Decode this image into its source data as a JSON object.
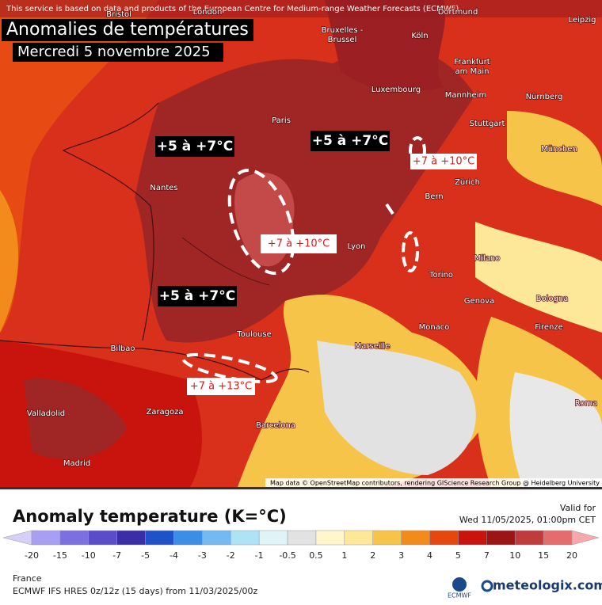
{
  "notice": "This service is based on data and products of the European Centre for Medium-range Weather Forecasts (ECMWF)",
  "title": "Anomalies de températures",
  "subtitle": "Mercredi 5 novembre 2025",
  "annotations": [
    "+5 à +7°C",
    "+5 à +7°C",
    "+5 à +7°C",
    "+7 à +10°C",
    "+7 à +10°C",
    "+7 à +13°C"
  ],
  "cities": [
    "Bristol",
    "London",
    "Dortmund",
    "Leipzig",
    "Bruxelles -",
    "Brussel",
    "Köln",
    "Frankfurt",
    "am Main",
    "Luxembourg",
    "Mannheim",
    "Nürnberg",
    "Paris",
    "Stuttgart",
    "München",
    "Nantes",
    "Zürich",
    "Bern",
    "Lyon",
    "Milano",
    "Torino",
    "Genova",
    "Bologna",
    "Monaco",
    "Firenze",
    "Toulouse",
    "Marseille",
    "Bilbao",
    "Roma",
    "Valladolid",
    "Zaragoza",
    "Barcelona",
    "Madrid"
  ],
  "attribution": "Map data © OpenStreetMap contributors, rendering GIScience Research Group @ Heidelberg University",
  "legend": {
    "title": "Anomaly temperature (K=°C)",
    "ticks": [
      -20,
      -15,
      -10,
      -7,
      -5,
      -4,
      -3,
      -2,
      -1,
      -0.5,
      0.5,
      1,
      2,
      3,
      4,
      5,
      7,
      10,
      15,
      20
    ],
    "colors": [
      "#d6d0f8",
      "#a99ff0",
      "#7c70e0",
      "#5b4dca",
      "#3a2ea6",
      "#1f52c8",
      "#3b8de6",
      "#74b9f0",
      "#aee2f5",
      "#e0f4f8",
      "#e2e2e2",
      "#fff6cc",
      "#fde89a",
      "#f6c448",
      "#f28b1c",
      "#e6470f",
      "#c8140c",
      "#9c1414",
      "#c03c3c",
      "#e46c6c",
      "#f6a8aa",
      "#fbd8e0"
    ]
  },
  "valid": {
    "label": "Valid for",
    "time": "Wed 11/05/2025, 01:00pm CET"
  },
  "footer": {
    "region": "France",
    "model": "ECMWF IFS HRES 0z/12z (15 days) from 11/03/2025/00z",
    "logo1": "ECMWF",
    "logo2": "meteologix.com"
  }
}
